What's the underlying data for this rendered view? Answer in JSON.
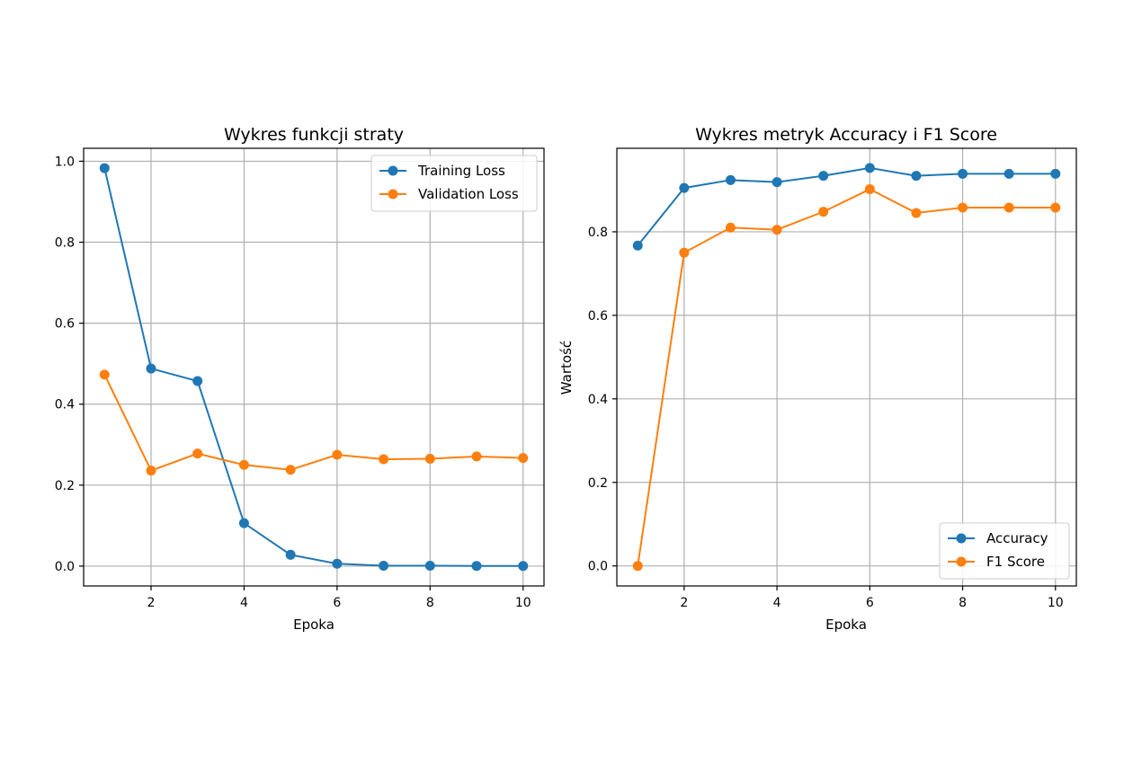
{
  "chart_data": [
    {
      "type": "line",
      "title": "Wykres funkcji straty",
      "xlabel": "Epoka",
      "ylabel": "",
      "xlim": [
        0.55,
        10.45
      ],
      "ylim": [
        -0.049,
        1.032
      ],
      "xticks": [
        2,
        4,
        6,
        8,
        10
      ],
      "yticks": [
        0.0,
        0.2,
        0.4,
        0.6,
        0.8,
        1.0
      ],
      "ytick_labels": [
        "0.0",
        "0.2",
        "0.4",
        "0.6",
        "0.8",
        "1.0"
      ],
      "xtick_labels": [
        "2",
        "4",
        "6",
        "8",
        "10"
      ],
      "grid": true,
      "legend_position": "top-right",
      "x": [
        1,
        2,
        3,
        4,
        5,
        6,
        7,
        8,
        9,
        10
      ],
      "series": [
        {
          "name": "Training Loss",
          "color": "#1f77b4",
          "values": [
            0.983,
            0.488,
            0.457,
            0.106,
            0.028,
            0.006,
            0.001,
            0.001,
            0.0005,
            0.0003
          ]
        },
        {
          "name": "Validation Loss",
          "color": "#ff7f0e",
          "values": [
            0.473,
            0.236,
            0.278,
            0.25,
            0.238,
            0.275,
            0.264,
            0.265,
            0.271,
            0.267
          ]
        }
      ]
    },
    {
      "type": "line",
      "title": "Wykres metryk Accuracy i F1 Score",
      "xlabel": "Epoka",
      "ylabel": "Wartość",
      "xlim": [
        0.55,
        10.45
      ],
      "ylim": [
        -0.048,
        1.0
      ],
      "xticks": [
        2,
        4,
        6,
        8,
        10
      ],
      "yticks": [
        0.0,
        0.2,
        0.4,
        0.6,
        0.8
      ],
      "ytick_labels": [
        "0.0",
        "0.2",
        "0.4",
        "0.6",
        "0.8"
      ],
      "xtick_labels": [
        "2",
        "4",
        "6",
        "8",
        "10"
      ],
      "grid": true,
      "legend_position": "bottom-right",
      "x": [
        1,
        2,
        3,
        4,
        5,
        6,
        7,
        8,
        9,
        10
      ],
      "series": [
        {
          "name": "Accuracy",
          "color": "#1f77b4",
          "values": [
            0.767,
            0.905,
            0.924,
            0.919,
            0.934,
            0.953,
            0.934,
            0.939,
            0.939,
            0.939
          ]
        },
        {
          "name": "F1 Score",
          "color": "#ff7f0e",
          "values": [
            0.0,
            0.75,
            0.81,
            0.805,
            0.848,
            0.902,
            0.845,
            0.858,
            0.858,
            0.858
          ]
        }
      ]
    }
  ]
}
